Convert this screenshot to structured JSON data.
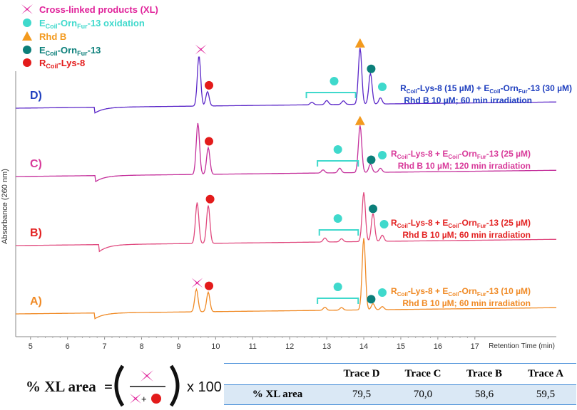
{
  "chart_data": {
    "type": "line",
    "xlabel": "Retention Time (min)",
    "ylabel": "Absorbance (260 nm)",
    "xlim": [
      4.6,
      19.2
    ],
    "x_ticks": [
      5,
      6,
      7,
      8,
      9,
      10,
      11,
      12,
      13,
      14,
      15,
      16,
      17
    ],
    "legend": [
      {
        "label": "Cross-linked products (XL)",
        "marker": "cross",
        "color": "#e0229a"
      },
      {
        "label_main": "E",
        "label_sub": "Coil",
        "label_mid": "-Orn",
        "label_sub2": "Fur",
        "label_end": "-13 oxidation",
        "marker": "circle",
        "color": "#3fd9cc"
      },
      {
        "label": "Rhd B",
        "marker": "triangle",
        "color": "#f39a1e"
      },
      {
        "label_main": "E",
        "label_sub": "Coil",
        "label_mid": "-Orn",
        "label_sub2": "Fur",
        "label_end": "-13",
        "marker": "circle",
        "color": "#0b7f7a"
      },
      {
        "label_main": "R",
        "label_sub": "Coil",
        "label_end": "-Lys-8",
        "marker": "circle",
        "color": "#e31b1b"
      }
    ],
    "series": [
      {
        "name": "D)",
        "color": "#5b27c8",
        "text_color": "#1f3fbf",
        "annotation_line1": "R_Coil-Lys-8 (15 µM) + E_Coil-Orn_Fur-13 (30 µM)",
        "annotation_line2": "Rhd B 10 µM; 60 min irradiation",
        "peaks": [
          [
            6.72,
            -12
          ],
          [
            9.55,
            98
          ],
          [
            9.78,
            28
          ],
          [
            12.6,
            5
          ],
          [
            13.0,
            8
          ],
          [
            13.45,
            7
          ],
          [
            13.9,
            110
          ],
          [
            14.18,
            60
          ],
          [
            14.45,
            12
          ]
        ],
        "markers": [
          [
            "cross",
            9.6
          ],
          [
            "red",
            9.82
          ],
          [
            "oxid",
            13.2
          ],
          [
            "rhdb",
            13.9
          ],
          [
            "teal",
            14.2
          ],
          [
            "oxid",
            14.5
          ]
        ]
      },
      {
        "name": "C)",
        "color": "#c42f9b",
        "text_color": "#d83a9a",
        "annotation_line1": "R_Coil-Lys-8 + E_Coil-Orn_Fur-13 (25 µM)",
        "annotation_line2": "Rhd B 10 µM; 120 min irradiation",
        "peaks": [
          [
            6.75,
            -12
          ],
          [
            9.52,
            100
          ],
          [
            9.8,
            52
          ],
          [
            12.9,
            6
          ],
          [
            13.35,
            9
          ],
          [
            13.9,
            92
          ],
          [
            14.18,
            16
          ],
          [
            14.45,
            8
          ]
        ],
        "markers": [
          [
            "rhdb",
            13.9
          ],
          [
            "red",
            9.82
          ],
          [
            "oxid",
            13.3
          ],
          [
            "teal",
            14.2
          ],
          [
            "oxid",
            14.5
          ]
        ]
      },
      {
        "name": "B)",
        "color": "#e04a7f",
        "text_color": "#e32222",
        "annotation_line1": "R_Coil-Lys-8 + E_Coil-Orn_Fur-13 (25 µM)",
        "annotation_line2": "Rhd B 10 µM; 60 min irradiation",
        "peaks": [
          [
            6.85,
            -14
          ],
          [
            9.5,
            80
          ],
          [
            9.8,
            74
          ],
          [
            12.95,
            8
          ],
          [
            13.4,
            6
          ],
          [
            14.0,
            96
          ],
          [
            14.25,
            55
          ],
          [
            14.5,
            12
          ]
        ],
        "markers": [
          [
            "red",
            9.85
          ],
          [
            "oxid",
            13.3
          ],
          [
            "teal",
            14.25
          ],
          [
            "oxid",
            14.55
          ]
        ]
      },
      {
        "name": "A)",
        "color": "#f08a25",
        "text_color": "#f08a25",
        "annotation_line1": "R_Coil-Lys-8 + E_Coil-Orn_Fur-13 (10 µM)",
        "annotation_line2": "Rhd B 10 µM; 60 min irradiation",
        "peaks": [
          [
            6.72,
            -12
          ],
          [
            9.48,
            44
          ],
          [
            9.8,
            38
          ],
          [
            12.95,
            6
          ],
          [
            13.4,
            5
          ],
          [
            14.0,
            140
          ],
          [
            14.25,
            12
          ],
          [
            14.5,
            6
          ]
        ],
        "markers": [
          [
            "cross",
            9.5
          ],
          [
            "red",
            9.82
          ],
          [
            "oxid",
            13.3
          ],
          [
            "teal",
            14.2
          ],
          [
            "oxid",
            14.5
          ]
        ]
      }
    ],
    "brackets": [
      [
        12.45,
        13.78
      ],
      [
        12.75,
        13.85
      ],
      [
        12.8,
        13.85
      ],
      [
        12.75,
        13.85
      ]
    ]
  },
  "formula": {
    "prefix": "% XL area",
    "equals": "=",
    "plus": "+",
    "suffix": "x 100"
  },
  "table": {
    "headers": [
      "Trace D",
      "Trace C",
      "Trace B",
      "Trace A"
    ],
    "row_label": "% XL area",
    "values": [
      "79,5",
      "70,0",
      "58,6",
      "59,5"
    ]
  }
}
